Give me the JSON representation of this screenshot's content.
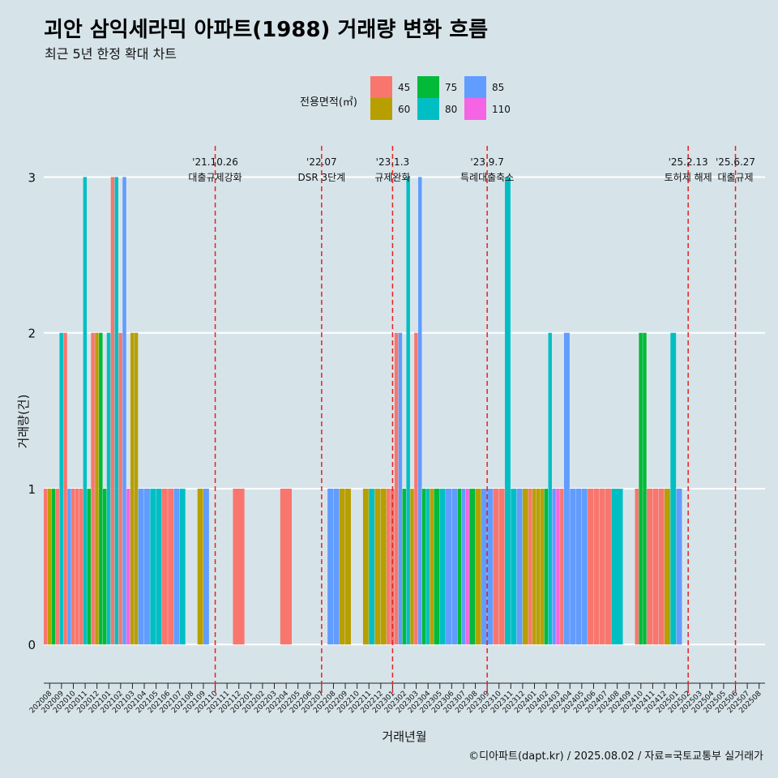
{
  "title": "괴안 삼익세라믹 아파트(1988) 거래량 변화 흐름",
  "subtitle": "최근 5년 한정 확대 차트",
  "caption": "©디아파트(dapt.kr) / 2025.08.02 / 자료=국토교통부 실거래가",
  "legend": {
    "title": "전용면적(㎡)",
    "items": [
      {
        "label": "45",
        "color": "#f8766d"
      },
      {
        "label": "60",
        "color": "#b79f00"
      },
      {
        "label": "75",
        "color": "#00ba38"
      },
      {
        "label": "80",
        "color": "#00bfc4"
      },
      {
        "label": "85",
        "color": "#619cff"
      },
      {
        "label": "110",
        "color": "#f564e3"
      }
    ]
  },
  "chart_data": {
    "type": "bar",
    "title": "괴안 삼익세라믹 아파트(1988) 거래량 변화 흐름",
    "xlabel": "거래년월",
    "ylabel": "거래량(건)",
    "ylim": [
      0,
      3
    ],
    "yticks": [
      0,
      1,
      2,
      3
    ],
    "months": [
      "202008",
      "202009",
      "202010",
      "202011",
      "202012",
      "202101",
      "202102",
      "202103",
      "202104",
      "202105",
      "202106",
      "202107",
      "202108",
      "202109",
      "202110",
      "202111",
      "202112",
      "202201",
      "202202",
      "202203",
      "202204",
      "202205",
      "202206",
      "202207",
      "202208",
      "202209",
      "202210",
      "202211",
      "202212",
      "202301",
      "202302",
      "202303",
      "202304",
      "202305",
      "202306",
      "202307",
      "202308",
      "202309",
      "202310",
      "202311",
      "202312",
      "202401",
      "202402",
      "202403",
      "202404",
      "202405",
      "202406",
      "202407",
      "202408",
      "202409",
      "202410",
      "202411",
      "202412",
      "202501",
      "202502",
      "202503",
      "202504",
      "202505",
      "202506",
      "202507",
      "202508"
    ],
    "bars": [
      {
        "month": "202008",
        "sizes": [
          "45",
          "60",
          "75"
        ],
        "values": [
          1,
          1,
          1
        ]
      },
      {
        "month": "202009",
        "sizes": [
          "45",
          "80",
          "45"
        ],
        "values": [
          1,
          2,
          2
        ]
      },
      {
        "month": "202010",
        "sizes": [
          "85",
          "45",
          "45"
        ],
        "values": [
          1,
          1,
          1
        ]
      },
      {
        "month": "202011",
        "sizes": [
          "45",
          "80",
          "75"
        ],
        "values": [
          1,
          3,
          1
        ]
      },
      {
        "month": "202012",
        "sizes": [
          "45",
          "60",
          "75"
        ],
        "values": [
          2,
          2,
          2
        ]
      },
      {
        "month": "202101",
        "sizes": [
          "75",
          "80",
          "45"
        ],
        "values": [
          1,
          2,
          3
        ]
      },
      {
        "month": "202102",
        "sizes": [
          "80",
          "45",
          "85"
        ],
        "values": [
          3,
          2,
          3
        ]
      },
      {
        "month": "202103",
        "sizes": [
          "110",
          "60",
          "60"
        ],
        "values": [
          1,
          2,
          2
        ]
      },
      {
        "month": "202104",
        "sizes": [
          "85",
          "85"
        ],
        "values": [
          1,
          1
        ]
      },
      {
        "month": "202105",
        "sizes": [
          "80",
          "80"
        ],
        "values": [
          1,
          1
        ]
      },
      {
        "month": "202106",
        "sizes": [
          "45",
          "45"
        ],
        "values": [
          1,
          1
        ]
      },
      {
        "month": "202107",
        "sizes": [
          "85",
          "80"
        ],
        "values": [
          1,
          1
        ]
      },
      {
        "month": "202109",
        "sizes": [
          "60",
          "85"
        ],
        "values": [
          1,
          1
        ]
      },
      {
        "month": "202112",
        "sizes": [
          "45"
        ],
        "values": [
          1
        ]
      },
      {
        "month": "202204",
        "sizes": [
          "45"
        ],
        "values": [
          1
        ]
      },
      {
        "month": "202208",
        "sizes": [
          "85",
          "85"
        ],
        "values": [
          1,
          1
        ]
      },
      {
        "month": "202209",
        "sizes": [
          "60",
          "60"
        ],
        "values": [
          1,
          1
        ]
      },
      {
        "month": "202211",
        "sizes": [
          "60",
          "80"
        ],
        "values": [
          1,
          1
        ]
      },
      {
        "month": "202212",
        "sizes": [
          "60",
          "60"
        ],
        "values": [
          1,
          1
        ]
      },
      {
        "month": "202301",
        "sizes": [
          "45",
          "45",
          "45"
        ],
        "values": [
          1,
          1,
          2
        ]
      },
      {
        "month": "202302",
        "sizes": [
          "85",
          "75",
          "80"
        ],
        "values": [
          2,
          1,
          3
        ]
      },
      {
        "month": "202303",
        "sizes": [
          "60",
          "45",
          "85"
        ],
        "values": [
          1,
          2,
          3
        ]
      },
      {
        "month": "202304",
        "sizes": [
          "75",
          "80",
          "60"
        ],
        "values": [
          1,
          1,
          1
        ]
      },
      {
        "month": "202305",
        "sizes": [
          "75",
          "80"
        ],
        "values": [
          1,
          1
        ]
      },
      {
        "month": "202306",
        "sizes": [
          "85",
          "85"
        ],
        "values": [
          1,
          1
        ]
      },
      {
        "month": "202307",
        "sizes": [
          "75",
          "85",
          "110"
        ],
        "values": [
          1,
          1,
          1
        ]
      },
      {
        "month": "202308",
        "sizes": [
          "75",
          "60"
        ],
        "values": [
          1,
          1
        ]
      },
      {
        "month": "202309",
        "sizes": [
          "85",
          "85"
        ],
        "values": [
          1,
          1
        ]
      },
      {
        "month": "202310",
        "sizes": [
          "45",
          "45"
        ],
        "values": [
          1,
          1
        ]
      },
      {
        "month": "202311",
        "sizes": [
          "80",
          "80"
        ],
        "values": [
          3,
          1
        ]
      },
      {
        "month": "202312",
        "sizes": [
          "85",
          "60"
        ],
        "values": [
          1,
          1
        ]
      },
      {
        "month": "202401",
        "sizes": [
          "45",
          "60",
          "60"
        ],
        "values": [
          1,
          1,
          1
        ]
      },
      {
        "month": "202402",
        "sizes": [
          "60",
          "75",
          "80"
        ],
        "values": [
          1,
          1,
          2
        ]
      },
      {
        "month": "202403",
        "sizes": [
          "85",
          "110",
          "45"
        ],
        "values": [
          1,
          1,
          1
        ]
      },
      {
        "month": "202404",
        "sizes": [
          "85",
          "85"
        ],
        "values": [
          2,
          1
        ]
      },
      {
        "month": "202405",
        "sizes": [
          "85",
          "85"
        ],
        "values": [
          1,
          1
        ]
      },
      {
        "month": "202406",
        "sizes": [
          "45",
          "45"
        ],
        "values": [
          1,
          1
        ]
      },
      {
        "month": "202407",
        "sizes": [
          "45",
          "45"
        ],
        "values": [
          1,
          1
        ]
      },
      {
        "month": "202408",
        "sizes": [
          "80"
        ],
        "values": [
          1
        ]
      },
      {
        "month": "202410",
        "sizes": [
          "45",
          "75",
          "75"
        ],
        "values": [
          1,
          2,
          2
        ]
      },
      {
        "month": "202411",
        "sizes": [
          "45",
          "45"
        ],
        "values": [
          1,
          1
        ]
      },
      {
        "month": "202412",
        "sizes": [
          "45",
          "60"
        ],
        "values": [
          1,
          1
        ]
      },
      {
        "month": "202501",
        "sizes": [
          "80",
          "85"
        ],
        "values": [
          2,
          1
        ]
      }
    ],
    "annotations": [
      {
        "month": "202110",
        "date": "'21.10.26",
        "label": "대출규제강화"
      },
      {
        "month": "202207",
        "date": "'22.07",
        "label": "DSR 3단계"
      },
      {
        "month": "202301",
        "date": "'23.1.3",
        "label": "규제완화"
      },
      {
        "month": "202309",
        "date": "'23.9.7",
        "label": "특례대출축소"
      },
      {
        "month": "202502",
        "date": "'25.2.13",
        "label": "토허제 해제"
      },
      {
        "month": "202506",
        "date": "'25.6.27",
        "label": "대출규제"
      }
    ]
  }
}
